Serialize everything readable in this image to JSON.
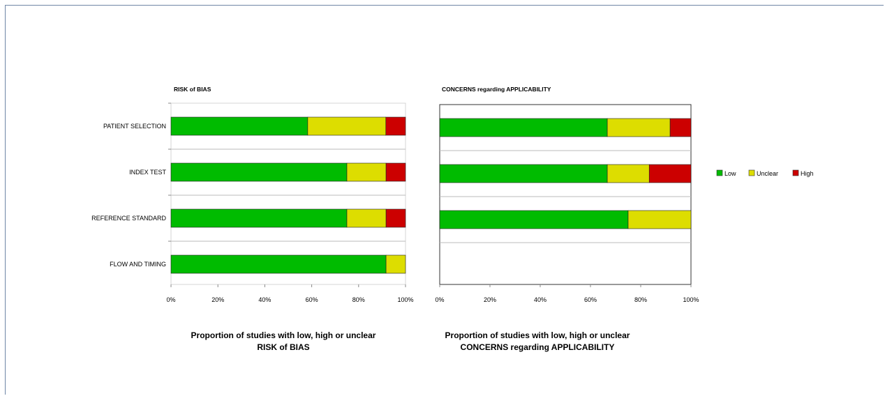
{
  "colors": {
    "low": "#00bb00",
    "unclear": "#dddd00",
    "high": "#cc0000"
  },
  "legend": [
    {
      "key": "low",
      "label": "Low"
    },
    {
      "key": "unclear",
      "label": "Unclear"
    },
    {
      "key": "high",
      "label": "High"
    }
  ],
  "chart_data": [
    {
      "type": "bar",
      "orientation": "horizontal",
      "stacked": "percent",
      "title": "RISK of BIAS",
      "caption": [
        "Proportion of studies with low, high or unclear",
        "RISK of BIAS"
      ],
      "categories": [
        "PATIENT SELECTION",
        "INDEX TEST",
        "REFERENCE STANDARD",
        "FLOW AND TIMING"
      ],
      "xlim": [
        0,
        100
      ],
      "xticks": [
        "0%",
        "20%",
        "40%",
        "60%",
        "80%",
        "100%"
      ],
      "series": [
        {
          "name": "Low",
          "values": [
            58.3,
            75.0,
            75.0,
            91.7
          ]
        },
        {
          "name": "Unclear",
          "values": [
            33.3,
            16.7,
            16.7,
            8.3
          ]
        },
        {
          "name": "High",
          "values": [
            8.4,
            8.3,
            8.3,
            0
          ]
        }
      ]
    },
    {
      "type": "bar",
      "orientation": "horizontal",
      "stacked": "percent",
      "title": "CONCERNS regarding APPLICABILITY",
      "caption": [
        "Proportion of studies with low, high or unclear",
        "CONCERNS regarding APPLICABILITY"
      ],
      "categories": [
        "PATIENT SELECTION",
        "INDEX TEST",
        "REFERENCE STANDARD"
      ],
      "xlim": [
        0,
        100
      ],
      "xticks": [
        "0%",
        "20%",
        "40%",
        "60%",
        "80%",
        "100%"
      ],
      "series": [
        {
          "name": "Low",
          "values": [
            66.7,
            66.7,
            75.0
          ]
        },
        {
          "name": "Unclear",
          "values": [
            25.0,
            16.7,
            25.0
          ]
        },
        {
          "name": "High",
          "values": [
            8.3,
            16.6,
            0
          ]
        }
      ]
    }
  ]
}
